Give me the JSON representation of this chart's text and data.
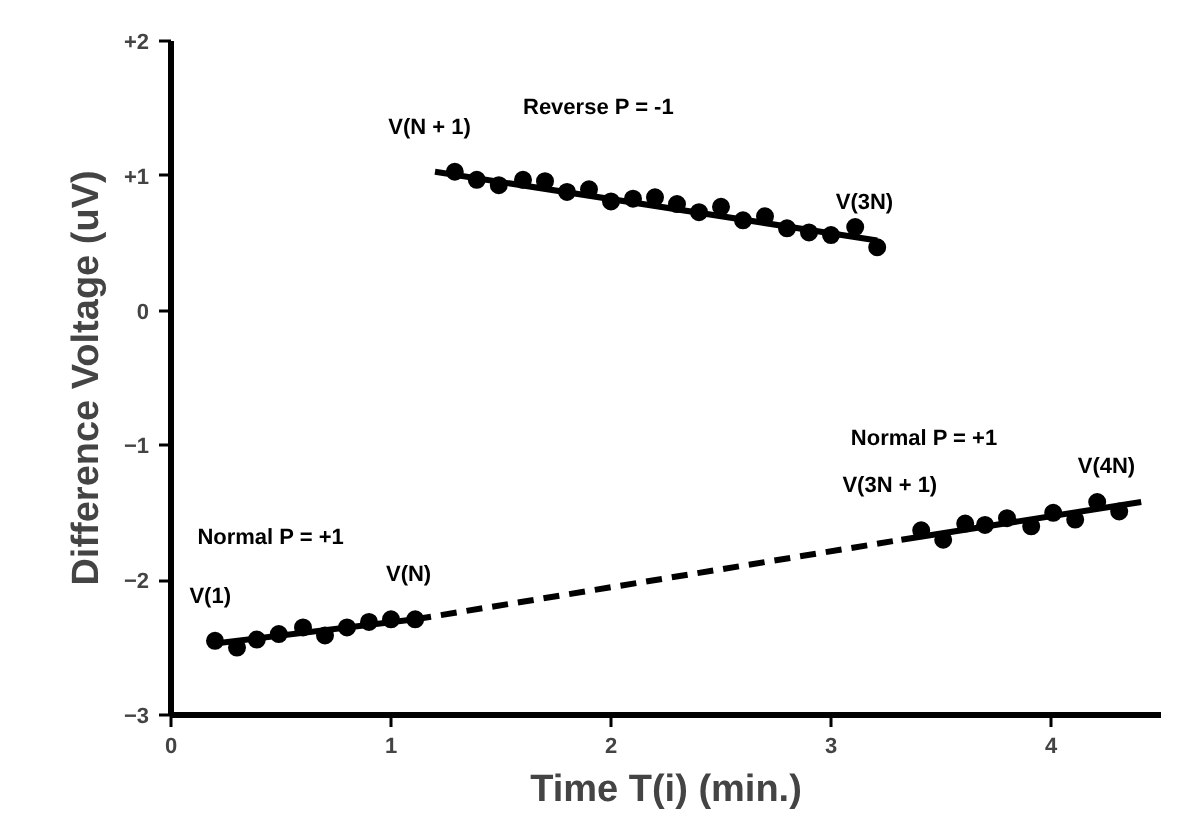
{
  "chart_data": {
    "type": "scatter",
    "xlabel": "Time T(i) (min.)",
    "ylabel": "Difference Voltage (uV)",
    "xlim": [
      0,
      4.5
    ],
    "ylim": [
      -3,
      2
    ],
    "xticks": [
      0,
      1,
      2,
      3,
      4
    ],
    "yticks": [
      {
        "value": 2,
        "label": "+2"
      },
      {
        "value": 1,
        "label": "+1"
      },
      0,
      -1,
      -2,
      -3
    ],
    "grid": false,
    "marker": "circle",
    "series": [
      {
        "color": "#000000",
        "x": [
          0.2,
          0.3,
          0.39,
          0.49,
          0.6,
          0.7,
          0.8,
          0.9,
          1.0,
          1.11
        ],
        "values": [
          -2.45,
          -2.5,
          -2.44,
          -2.4,
          -2.35,
          -2.41,
          -2.35,
          -2.31,
          -2.29,
          -2.29
        ]
      },
      {
        "color": "#000000",
        "x": [
          1.29,
          1.39,
          1.49,
          1.6,
          1.7,
          1.8,
          1.9,
          2.0,
          2.1,
          2.2,
          2.3,
          2.4,
          2.5,
          2.6,
          2.7,
          2.8,
          2.9,
          3.0,
          3.11,
          3.21
        ],
        "values": [
          1.03,
          0.97,
          0.93,
          0.97,
          0.96,
          0.88,
          0.9,
          0.81,
          0.83,
          0.84,
          0.79,
          0.73,
          0.77,
          0.67,
          0.7,
          0.61,
          0.58,
          0.56,
          0.62,
          0.47
        ]
      },
      {
        "color": "#000000",
        "x": [
          3.41,
          3.51,
          3.61,
          3.7,
          3.8,
          3.91,
          4.01,
          4.11,
          4.21,
          4.31
        ],
        "values": [
          -1.63,
          -1.7,
          -1.58,
          -1.59,
          -1.54,
          -1.6,
          -1.5,
          -1.55,
          -1.42,
          -1.49
        ]
      },
      {
        "type": "line",
        "color": "#000000",
        "line_style": "solid",
        "marker": "none",
        "x": [
          0.2,
          1.11
        ],
        "values": [
          -2.47,
          -2.29
        ]
      },
      {
        "type": "line",
        "color": "#000000",
        "line_style": "dashed",
        "marker": "none",
        "x": [
          1.11,
          3.32
        ],
        "values": [
          -2.29,
          -1.7
        ]
      },
      {
        "type": "line",
        "color": "#000000",
        "line_style": "solid",
        "marker": "none",
        "x": [
          3.32,
          4.41
        ],
        "values": [
          -1.7,
          -1.42
        ]
      },
      {
        "type": "line",
        "color": "#000000",
        "line_style": "solid",
        "marker": "none",
        "x": [
          1.2,
          3.21
        ],
        "values": [
          1.03,
          0.52
        ]
      }
    ],
    "annotations": [
      "Reverse P = -1",
      {
        "text": "V(N + 1)",
        "x": 1.29,
        "y": 1.03
      },
      {
        "text": "V(3N)",
        "x": 3.21,
        "y": 0.47
      },
      "Normal P = +1",
      {
        "text": "V(1)",
        "x": 0.2,
        "y": -2.45
      },
      {
        "text": "V(N)",
        "x": 1.11,
        "y": -2.29
      },
      "Normal P = +1",
      {
        "text": "V(3N + 1)",
        "x": 3.41,
        "y": -1.63
      },
      {
        "text": "V(4N)",
        "x": 4.31,
        "y": -1.49
      }
    ]
  }
}
